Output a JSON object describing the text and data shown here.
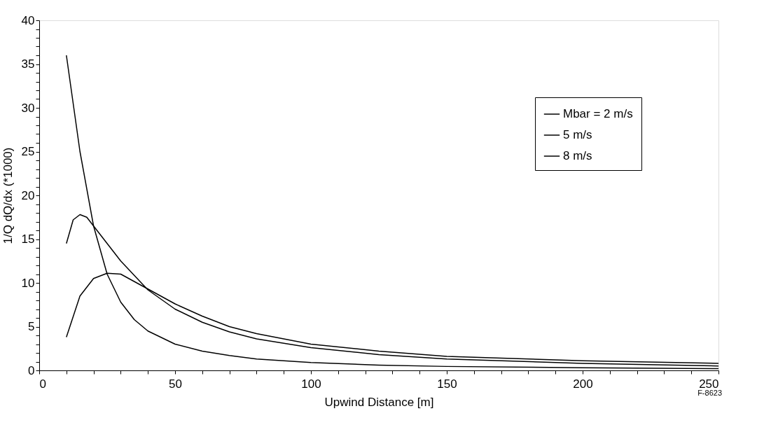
{
  "chart_data": {
    "type": "line",
    "xlabel": "Upwind Distance [m]",
    "ylabel": "1/Q dQ/dx (*1000)",
    "xlim": [
      0,
      250
    ],
    "ylim": [
      0,
      40
    ],
    "xticks": [
      0,
      {
        "value": 10,
        "label": null
      },
      {
        "value": 20,
        "label": null
      },
      {
        "value": 30,
        "label": null
      },
      {
        "value": 40,
        "label": null
      },
      50,
      {
        "value": 60,
        "label": null
      },
      {
        "value": 70,
        "label": null
      },
      {
        "value": 80,
        "label": null
      },
      {
        "value": 90,
        "label": null
      },
      100,
      {
        "value": 110,
        "label": null
      },
      {
        "value": 120,
        "label": null
      },
      {
        "value": 130,
        "label": null
      },
      {
        "value": 140,
        "label": null
      },
      150,
      {
        "value": 160,
        "label": null
      },
      {
        "value": 170,
        "label": null
      },
      {
        "value": 180,
        "label": null
      },
      {
        "value": 190,
        "label": null
      },
      200,
      {
        "value": 210,
        "label": null
      },
      {
        "value": 220,
        "label": null
      },
      {
        "value": 230,
        "label": null
      },
      {
        "value": 240,
        "label": null
      },
      250
    ],
    "yticks": [
      0,
      {
        "value": 1,
        "label": null
      },
      {
        "value": 2,
        "label": null
      },
      {
        "value": 3,
        "label": null
      },
      {
        "value": 4,
        "label": null
      },
      5,
      {
        "value": 6,
        "label": null
      },
      {
        "value": 7,
        "label": null
      },
      {
        "value": 8,
        "label": null
      },
      {
        "value": 9,
        "label": null
      },
      10,
      {
        "value": 11,
        "label": null
      },
      {
        "value": 12,
        "label": null
      },
      {
        "value": 13,
        "label": null
      },
      {
        "value": 14,
        "label": null
      },
      15,
      {
        "value": 16,
        "label": null
      },
      {
        "value": 17,
        "label": null
      },
      {
        "value": 18,
        "label": null
      },
      {
        "value": 19,
        "label": null
      },
      20,
      {
        "value": 21,
        "label": null
      },
      {
        "value": 22,
        "label": null
      },
      {
        "value": 23,
        "label": null
      },
      {
        "value": 24,
        "label": null
      },
      25,
      {
        "value": 26,
        "label": null
      },
      {
        "value": 27,
        "label": null
      },
      {
        "value": 28,
        "label": null
      },
      {
        "value": 29,
        "label": null
      },
      30,
      {
        "value": 31,
        "label": null
      },
      {
        "value": 32,
        "label": null
      },
      {
        "value": 33,
        "label": null
      },
      {
        "value": 34,
        "label": null
      },
      35,
      {
        "value": 36,
        "label": null
      },
      {
        "value": 37,
        "label": null
      },
      {
        "value": 38,
        "label": null
      },
      {
        "value": 39,
        "label": null
      },
      40
    ],
    "grid": false,
    "legend": "top right",
    "marker": "none",
    "line_style": "solid",
    "annotations": [
      "F-8623"
    ],
    "series": [
      {
        "name": "Mbar = 2 m/s",
        "color": "#000000",
        "x": [
          10,
          15,
          20,
          25,
          30,
          35,
          40,
          50,
          60,
          70,
          80,
          100,
          125,
          150,
          200,
          250
        ],
        "values": [
          36,
          25,
          16.5,
          11,
          7.8,
          5.8,
          4.5,
          3.0,
          2.2,
          1.7,
          1.3,
          0.9,
          0.6,
          0.45,
          0.3,
          0.2
        ]
      },
      {
        "name": "5 m/s",
        "color": "#000000",
        "x": [
          10,
          12.5,
          15,
          17.5,
          20,
          25,
          30,
          40,
          50,
          60,
          70,
          80,
          100,
          125,
          150,
          200,
          250
        ],
        "values": [
          14.5,
          17.2,
          17.8,
          17.5,
          16.5,
          14.5,
          12.5,
          9.2,
          7.0,
          5.5,
          4.4,
          3.6,
          2.6,
          1.8,
          1.3,
          0.8,
          0.5
        ]
      },
      {
        "name": "8 m/s",
        "color": "#000000",
        "x": [
          10,
          15,
          20,
          25,
          30,
          40,
          50,
          60,
          70,
          80,
          100,
          125,
          150,
          200,
          250
        ],
        "values": [
          3.8,
          8.5,
          10.5,
          11.1,
          11.0,
          9.3,
          7.6,
          6.2,
          5.0,
          4.2,
          3.0,
          2.2,
          1.6,
          1.1,
          0.8
        ]
      }
    ]
  }
}
